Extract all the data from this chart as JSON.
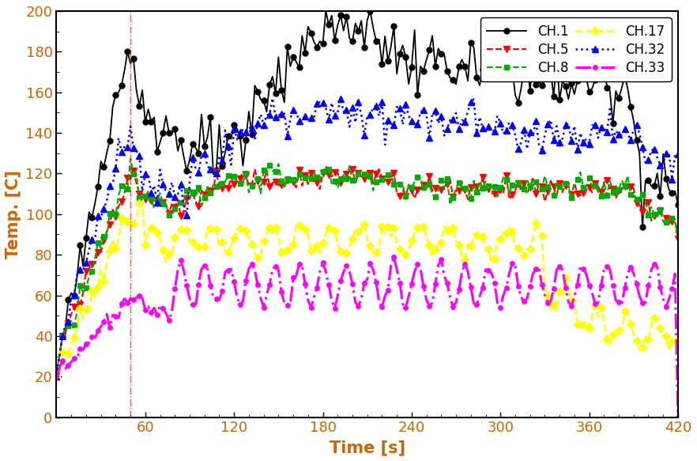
{
  "xlabel": "Time [s]",
  "ylabel": "Temp. [C]",
  "xlim": [
    0,
    420
  ],
  "ylim": [
    0,
    200
  ],
  "xticks": [
    60,
    120,
    180,
    240,
    300,
    360,
    420
  ],
  "yticks": [
    0,
    20,
    40,
    60,
    80,
    100,
    120,
    140,
    160,
    180,
    200
  ],
  "vline_x": 50,
  "vline_color": "red",
  "label_color": "#CC6600",
  "tick_color": "#CC6600",
  "channels": [
    "CH.1",
    "CH.5",
    "CH.8",
    "CH.17",
    "CH.32",
    "CH.33"
  ]
}
